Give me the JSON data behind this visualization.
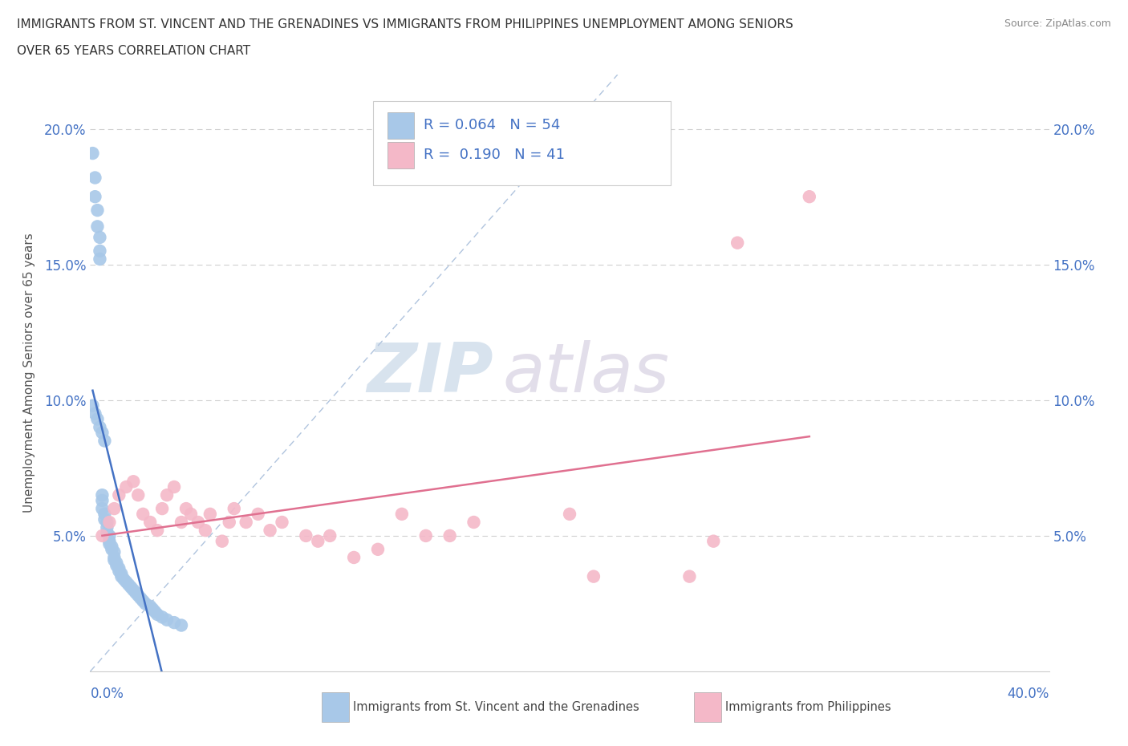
{
  "title_line1": "IMMIGRANTS FROM ST. VINCENT AND THE GRENADINES VS IMMIGRANTS FROM PHILIPPINES UNEMPLOYMENT AMONG SENIORS",
  "title_line2": "OVER 65 YEARS CORRELATION CHART",
  "source": "Source: ZipAtlas.com",
  "ylabel": "Unemployment Among Seniors over 65 years",
  "xlim": [
    0.0,
    0.4
  ],
  "ylim": [
    0.0,
    0.22
  ],
  "yticks": [
    0.05,
    0.1,
    0.15,
    0.2
  ],
  "ytick_labels": [
    "5.0%",
    "10.0%",
    "15.0%",
    "20.0%"
  ],
  "legend_r1": "R = 0.064",
  "legend_n1": "N = 54",
  "legend_r2": "R = 0.190",
  "legend_n2": "N = 41",
  "color_blue": "#a8c8e8",
  "color_pink": "#f4b8c8",
  "color_blue_line": "#4472c4",
  "color_pink_line": "#e07090",
  "watermark_zip": "ZIP",
  "watermark_atlas": "atlas",
  "scatter_blue_x": [
    0.001,
    0.002,
    0.002,
    0.003,
    0.003,
    0.004,
    0.004,
    0.004,
    0.005,
    0.005,
    0.005,
    0.006,
    0.006,
    0.007,
    0.007,
    0.007,
    0.008,
    0.008,
    0.008,
    0.009,
    0.009,
    0.01,
    0.01,
    0.01,
    0.011,
    0.011,
    0.012,
    0.012,
    0.013,
    0.013,
    0.014,
    0.015,
    0.016,
    0.017,
    0.018,
    0.019,
    0.02,
    0.021,
    0.022,
    0.023,
    0.025,
    0.026,
    0.027,
    0.028,
    0.03,
    0.032,
    0.035,
    0.038,
    0.001,
    0.002,
    0.003,
    0.004,
    0.005,
    0.006
  ],
  "scatter_blue_y": [
    0.191,
    0.182,
    0.175,
    0.17,
    0.164,
    0.16,
    0.155,
    0.152,
    0.065,
    0.063,
    0.06,
    0.058,
    0.056,
    0.055,
    0.053,
    0.051,
    0.05,
    0.048,
    0.047,
    0.046,
    0.045,
    0.044,
    0.042,
    0.041,
    0.04,
    0.039,
    0.038,
    0.037,
    0.036,
    0.035,
    0.034,
    0.033,
    0.032,
    0.031,
    0.03,
    0.029,
    0.028,
    0.027,
    0.026,
    0.025,
    0.024,
    0.023,
    0.022,
    0.021,
    0.02,
    0.019,
    0.018,
    0.017,
    0.098,
    0.095,
    0.093,
    0.09,
    0.088,
    0.085
  ],
  "scatter_pink_x": [
    0.005,
    0.008,
    0.01,
    0.012,
    0.015,
    0.018,
    0.02,
    0.022,
    0.025,
    0.028,
    0.03,
    0.032,
    0.035,
    0.038,
    0.04,
    0.042,
    0.045,
    0.048,
    0.05,
    0.055,
    0.058,
    0.06,
    0.065,
    0.07,
    0.075,
    0.08,
    0.09,
    0.095,
    0.1,
    0.11,
    0.12,
    0.13,
    0.14,
    0.15,
    0.16,
    0.2,
    0.21,
    0.25,
    0.26,
    0.27,
    0.3
  ],
  "scatter_pink_y": [
    0.05,
    0.055,
    0.06,
    0.065,
    0.068,
    0.07,
    0.065,
    0.058,
    0.055,
    0.052,
    0.06,
    0.065,
    0.068,
    0.055,
    0.06,
    0.058,
    0.055,
    0.052,
    0.058,
    0.048,
    0.055,
    0.06,
    0.055,
    0.058,
    0.052,
    0.055,
    0.05,
    0.048,
    0.05,
    0.042,
    0.045,
    0.058,
    0.05,
    0.05,
    0.055,
    0.058,
    0.035,
    0.035,
    0.048,
    0.158,
    0.175
  ]
}
